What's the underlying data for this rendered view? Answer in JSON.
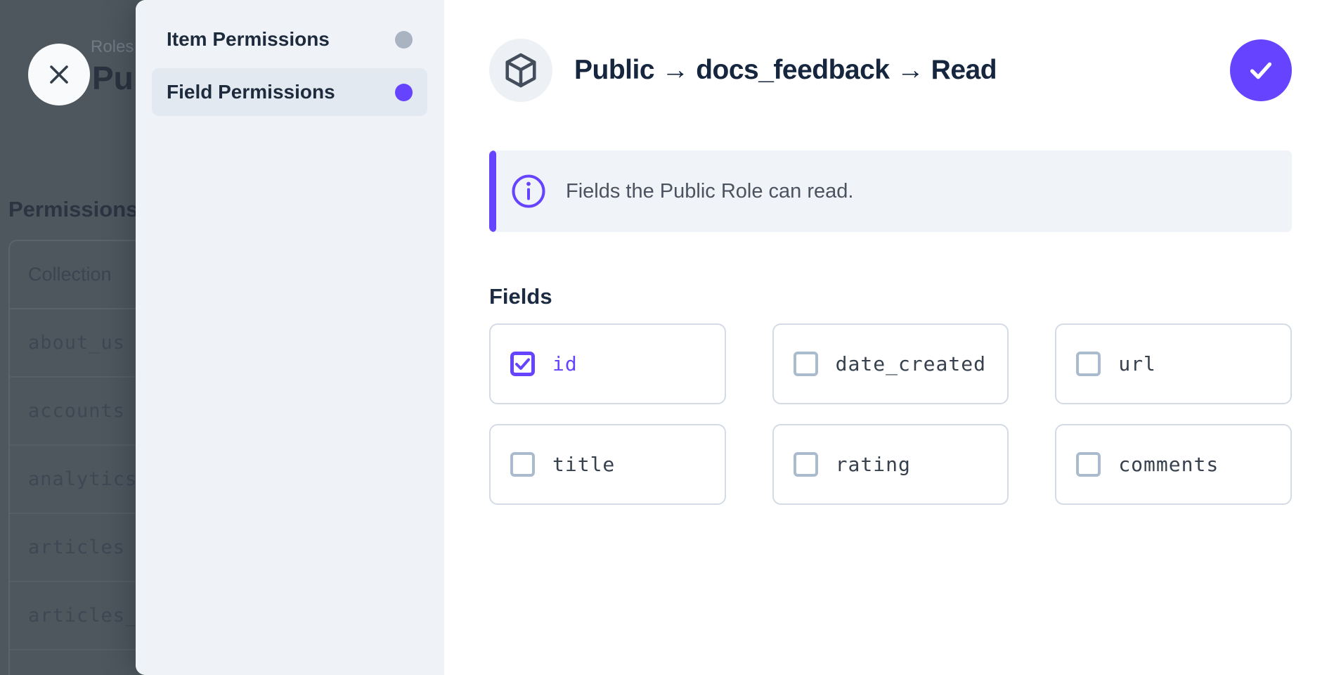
{
  "colors": {
    "accent": "#6644ff",
    "inactive_dot": "#a9b3c2",
    "title_navy": "#15263e",
    "backdrop_dim": "#4e575e"
  },
  "backdrop": {
    "breadcrumb": "Roles",
    "page_title_partial": "Pu",
    "section_heading": "Permissions",
    "table": {
      "header": "Collection",
      "rows": [
        "about_us",
        "accounts",
        "analytics",
        "articles",
        "articles_"
      ]
    }
  },
  "drawer": {
    "nav": {
      "items": [
        {
          "label": "Item Permissions",
          "dot_color": "#a9b3c2",
          "active": false
        },
        {
          "label": "Field Permissions",
          "dot_color": "#6644ff",
          "active": true
        }
      ]
    },
    "header": {
      "title": "Public → docs_feedback → Read"
    },
    "notice": {
      "text": "Fields the Public Role can read."
    },
    "fields": {
      "label": "Fields",
      "items": [
        {
          "name": "id",
          "checked": true
        },
        {
          "name": "date_created",
          "checked": false
        },
        {
          "name": "url",
          "checked": false
        },
        {
          "name": "title",
          "checked": false
        },
        {
          "name": "rating",
          "checked": false
        },
        {
          "name": "comments",
          "checked": false
        }
      ]
    }
  }
}
